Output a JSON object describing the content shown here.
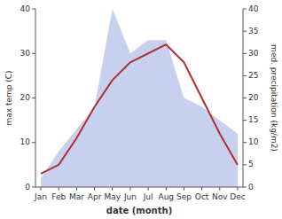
{
  "chart_data": {
    "type": "line",
    "xlabel": "date (month)",
    "ylabel": "max temp (C)",
    "y2label": "med. precipitation (kg/m2)",
    "categories": [
      "Jan",
      "Feb",
      "Mar",
      "Apr",
      "May",
      "Jun",
      "Jul",
      "Aug",
      "Sep",
      "Oct",
      "Nov",
      "Dec"
    ],
    "series": [
      {
        "type": "area",
        "axis": "y2",
        "color": "#c8d0f0",
        "values": [
          2,
          8,
          13,
          18,
          40,
          30,
          33,
          33,
          20,
          18,
          15,
          12
        ]
      },
      {
        "type": "line",
        "color": "#b03030",
        "values": [
          3,
          5,
          11,
          18,
          24,
          28,
          30,
          32,
          28,
          20,
          12,
          5
        ]
      }
    ],
    "ylim": [
      0,
      40
    ],
    "yticks": [
      0,
      10,
      20,
      30,
      40
    ],
    "y2lim": [
      0,
      40
    ],
    "y2ticks": [
      0,
      5,
      10,
      15,
      20,
      25,
      30,
      35,
      40
    ]
  }
}
